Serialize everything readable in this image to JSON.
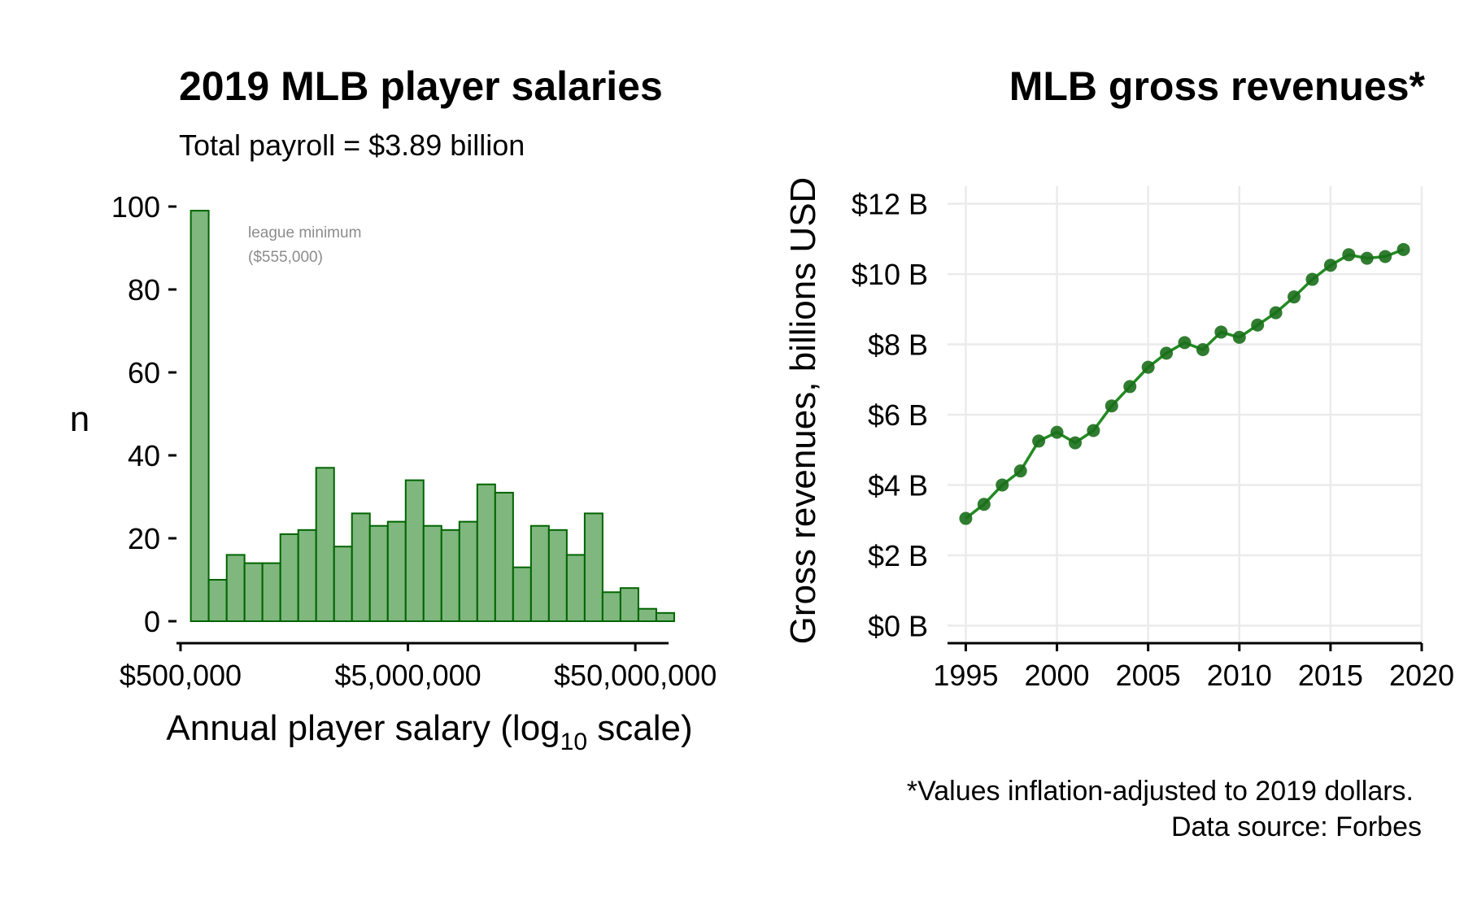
{
  "chart_data": [
    {
      "type": "bar",
      "title": "2019 MLB player salaries",
      "subtitle": "Total payroll = $3.89 billion",
      "xlabel_main": "Annual player salary (log",
      "xlabel_sub": "10",
      "xlabel_tail": " scale)",
      "ylabel": "n",
      "log_x": true,
      "xlim": [
        480000,
        70000000
      ],
      "ylim": [
        0,
        100
      ],
      "grid": false,
      "bar_color": "#7fb77e",
      "edge_color": "#006400",
      "x_ticks": [
        {
          "value": 500000,
          "label": "$500,000"
        },
        {
          "value": 5000000,
          "label": "$5,000,000"
        },
        {
          "value": 50000000,
          "label": "$50,000,000"
        }
      ],
      "y_ticks": [
        {
          "value": 0,
          "label": "0"
        },
        {
          "value": 20,
          "label": "20"
        },
        {
          "value": 40,
          "label": "40"
        },
        {
          "value": 60,
          "label": "60"
        },
        {
          "value": 80,
          "label": "80"
        },
        {
          "value": 100,
          "label": "100"
        }
      ],
      "bins": [
        {
          "start": 555000,
          "end": 665000,
          "count": 99
        },
        {
          "start": 665000,
          "end": 798000,
          "count": 10
        },
        {
          "start": 798000,
          "end": 956000,
          "count": 16
        },
        {
          "start": 956000,
          "end": 1146000,
          "count": 14
        },
        {
          "start": 1146000,
          "end": 1374000,
          "count": 14
        },
        {
          "start": 1374000,
          "end": 1647000,
          "count": 21
        },
        {
          "start": 1647000,
          "end": 1974000,
          "count": 22
        },
        {
          "start": 1974000,
          "end": 2367000,
          "count": 37
        },
        {
          "start": 2367000,
          "end": 2837000,
          "count": 18
        },
        {
          "start": 2837000,
          "end": 3401000,
          "count": 26
        },
        {
          "start": 3401000,
          "end": 4077000,
          "count": 23
        },
        {
          "start": 4077000,
          "end": 4887000,
          "count": 24
        },
        {
          "start": 4887000,
          "end": 5858000,
          "count": 34
        },
        {
          "start": 5858000,
          "end": 7022000,
          "count": 23
        },
        {
          "start": 7022000,
          "end": 8418000,
          "count": 22
        },
        {
          "start": 8418000,
          "end": 10091000,
          "count": 24
        },
        {
          "start": 10091000,
          "end": 12097000,
          "count": 33
        },
        {
          "start": 12097000,
          "end": 14501000,
          "count": 31
        },
        {
          "start": 14501000,
          "end": 17383000,
          "count": 13
        },
        {
          "start": 17383000,
          "end": 20837000,
          "count": 23
        },
        {
          "start": 20837000,
          "end": 24978000,
          "count": 22
        },
        {
          "start": 24978000,
          "end": 29942000,
          "count": 16
        },
        {
          "start": 29942000,
          "end": 35893000,
          "count": 26
        },
        {
          "start": 35893000,
          "end": 43026000,
          "count": 7
        },
        {
          "start": 43026000,
          "end": 51577000,
          "count": 8
        },
        {
          "start": 51577000,
          "end": 61828000,
          "count": 3
        },
        {
          "start": 61828000,
          "end": 74114000,
          "count": 2
        }
      ],
      "annotation": [
        "league minimum",
        "($555,000)"
      ]
    },
    {
      "type": "line",
      "title": "MLB gross revenues*",
      "ylabel": "Gross revenues, billions USD",
      "xlabel": "",
      "xlim": [
        1994,
        2020
      ],
      "ylim": [
        -0.5,
        12.5
      ],
      "grid": true,
      "line_color": "#228b22",
      "point_color": "#1a6e1a",
      "x_ticks": [
        {
          "value": 1995,
          "label": "1995"
        },
        {
          "value": 2000,
          "label": "2000"
        },
        {
          "value": 2005,
          "label": "2005"
        },
        {
          "value": 2010,
          "label": "2010"
        },
        {
          "value": 2015,
          "label": "2015"
        },
        {
          "value": 2020,
          "label": "2020"
        }
      ],
      "y_ticks": [
        {
          "value": 0,
          "label": "$0 B"
        },
        {
          "value": 2,
          "label": "$2 B"
        },
        {
          "value": 4,
          "label": "$4 B"
        },
        {
          "value": 6,
          "label": "$6 B"
        },
        {
          "value": 8,
          "label": "$8 B"
        },
        {
          "value": 10,
          "label": "$10 B"
        },
        {
          "value": 12,
          "label": "$12 B"
        }
      ],
      "x": [
        1995,
        1996,
        1997,
        1998,
        1999,
        2000,
        2001,
        2002,
        2003,
        2004,
        2005,
        2006,
        2007,
        2008,
        2009,
        2010,
        2011,
        2012,
        2013,
        2014,
        2015,
        2016,
        2017,
        2018,
        2019
      ],
      "y": [
        3.05,
        3.45,
        4.0,
        4.4,
        5.25,
        5.5,
        5.2,
        5.55,
        6.25,
        6.8,
        7.35,
        7.75,
        8.05,
        7.85,
        8.35,
        8.2,
        8.55,
        8.9,
        9.35,
        9.85,
        10.25,
        10.55,
        10.45,
        10.5,
        10.7
      ],
      "caption": [
        "*Values inflation-adjusted to 2019 dollars.",
        "Data source: Forbes"
      ]
    }
  ]
}
